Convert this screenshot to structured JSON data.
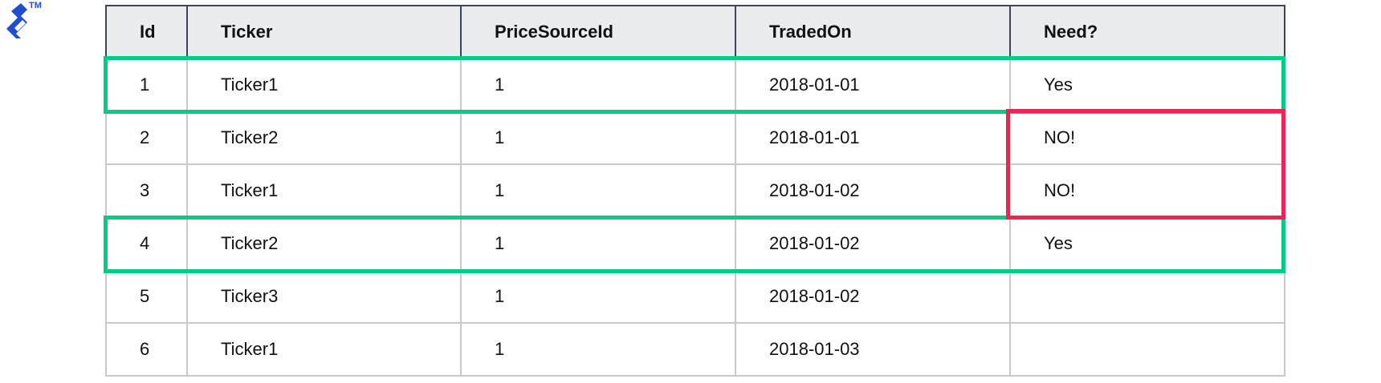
{
  "logo": {
    "brand": "Toptal",
    "trademark": "TM",
    "color": "#204ecf"
  },
  "table": {
    "columns": [
      "Id",
      "Ticker",
      "PriceSourceId",
      "TradedOn",
      "Need?"
    ],
    "rows": [
      [
        "1",
        "Ticker1",
        "1",
        "2018-01-01",
        "Yes"
      ],
      [
        "2",
        "Ticker2",
        "1",
        "2018-01-01",
        "NO!"
      ],
      [
        "3",
        "Ticker1",
        "1",
        "2018-01-02",
        "NO!"
      ],
      [
        "4",
        "Ticker2",
        "1",
        "2018-01-02",
        "Yes"
      ],
      [
        "5",
        "Ticker3",
        "1",
        "2018-01-02",
        ""
      ],
      [
        "6",
        "Ticker1",
        "1",
        "2018-01-03",
        ""
      ]
    ]
  },
  "highlights": {
    "keep_color": "#00cc83",
    "discard_color": "#ef2356",
    "keep_rows": [
      "1",
      "4"
    ],
    "discard_rows": [
      "2",
      "3"
    ]
  }
}
